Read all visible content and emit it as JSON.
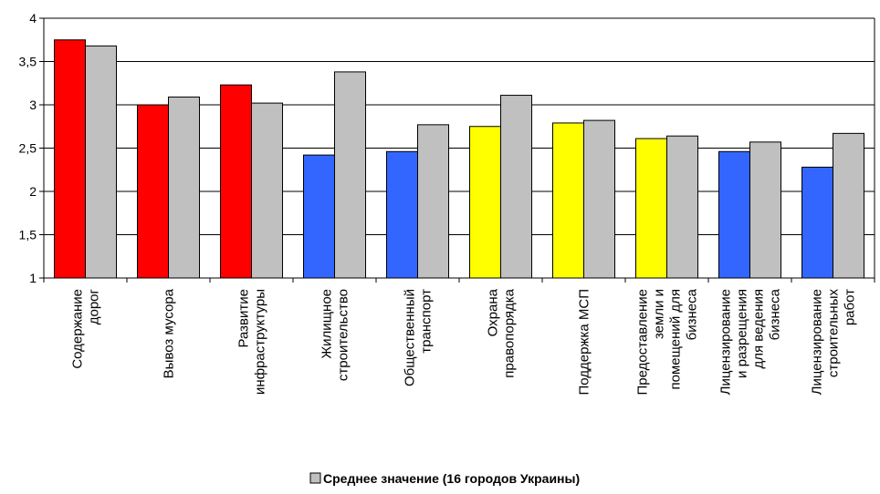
{
  "chart_data": {
    "type": "bar",
    "ylim": [
      1,
      4
    ],
    "yticks": [
      "1",
      "1,5",
      "2",
      "2,5",
      "3",
      "3,5",
      "4"
    ],
    "grid": true,
    "legend_position": "bottom",
    "categories": [
      [
        "Содержание",
        "дорог"
      ],
      [
        "Вывоз мусора"
      ],
      [
        "Развитие",
        "инфраструктуры"
      ],
      [
        "Жилищное",
        "строительство"
      ],
      [
        "Общественный",
        "транспорт"
      ],
      [
        "Охрана",
        "правопорядка"
      ],
      [
        "Поддержка МСП"
      ],
      [
        "Предоставление",
        "земли и",
        "помещений для",
        "бизнеса"
      ],
      [
        "Лицензирование",
        "и разрещения",
        "для ведения",
        "бизнеса"
      ],
      [
        "Лицензирование",
        "строительных",
        "работ"
      ]
    ],
    "series": [
      {
        "values": [
          3.75,
          3.0,
          3.23,
          2.42,
          2.46,
          2.75,
          2.79,
          2.61,
          2.46,
          2.28
        ],
        "colors": [
          "#ff0000",
          "#ff0000",
          "#ff0000",
          "#3366ff",
          "#3366ff",
          "#ffff00",
          "#ffff00",
          "#ffff00",
          "#3366ff",
          "#3366ff"
        ]
      },
      {
        "name": "Среднее значение (16 городов Украины)",
        "values": [
          3.68,
          3.09,
          3.02,
          3.38,
          2.77,
          3.11,
          2.82,
          2.64,
          2.57,
          2.67
        ],
        "color": "#c0c0c0"
      }
    ]
  }
}
